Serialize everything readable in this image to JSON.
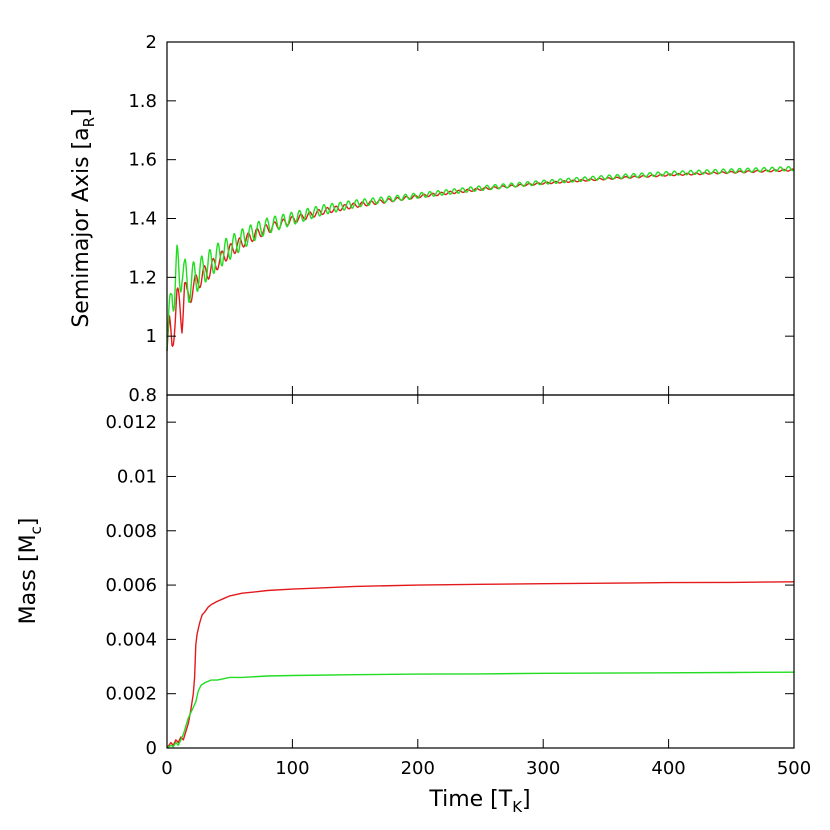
{
  "colors": {
    "series1": "#e31a1c",
    "series2": "#22dd22",
    "axis": "#000000",
    "background": "#ffffff"
  },
  "chart_data": [
    {
      "type": "line",
      "title": "",
      "xlabel": "",
      "ylabel": {
        "main": "Semimajor Axis [a",
        "sub": "R",
        "close": "]"
      },
      "xlim": [
        0,
        500
      ],
      "ylim": [
        0.8,
        2.0
      ],
      "yticks": [
        "0.8",
        "1",
        "1.2",
        "1.4",
        "1.6",
        "1.8",
        "2"
      ],
      "grid": false,
      "series": [
        {
          "color": "#e31a1c",
          "envelope": {
            "x": [
              0,
              2,
              4,
              6,
              8,
              10,
              12,
              14,
              16,
              20,
              25,
              30,
              35,
              40,
              50,
              60,
              70,
              80,
              100,
              125,
              150,
              175,
              200,
              250,
              300,
              350,
              400,
              450,
              500
            ],
            "y": [
              0.95,
              1.02,
              0.99,
              1.05,
              1.12,
              1.1,
              1.05,
              1.18,
              1.12,
              1.16,
              1.19,
              1.21,
              1.23,
              1.25,
              1.29,
              1.32,
              1.345,
              1.365,
              1.395,
              1.425,
              1.445,
              1.46,
              1.475,
              1.5,
              1.52,
              1.535,
              1.548,
              1.557,
              1.565
            ],
            "osc_amp": [
              0.04,
              0.05,
              0.05,
              0.05,
              0.05,
              0.05,
              0.04,
              0.04,
              0.04,
              0.035,
              0.03,
              0.03,
              0.028,
              0.025,
              0.022,
              0.02,
              0.018,
              0.016,
              0.012,
              0.01,
              0.008,
              0.006,
              0.005,
              0.004,
              0.003,
              0.003,
              0.003,
              0.003,
              0.003
            ],
            "osc_period": 7
          }
        },
        {
          "color": "#22dd22",
          "envelope": {
            "x": [
              0,
              2,
              4,
              6,
              8,
              10,
              12,
              14,
              16,
              20,
              25,
              30,
              35,
              40,
              50,
              60,
              70,
              80,
              100,
              125,
              150,
              175,
              200,
              250,
              300,
              350,
              400,
              450,
              500
            ],
            "y": [
              0.95,
              1.05,
              1.2,
              1.15,
              1.22,
              1.2,
              1.25,
              1.2,
              1.17,
              1.19,
              1.21,
              1.23,
              1.25,
              1.27,
              1.3,
              1.33,
              1.355,
              1.375,
              1.4,
              1.43,
              1.45,
              1.465,
              1.478,
              1.503,
              1.523,
              1.54,
              1.553,
              1.562,
              1.57
            ],
            "osc_amp": [
              0.04,
              0.08,
              0.09,
              0.09,
              0.09,
              0.08,
              0.08,
              0.07,
              0.07,
              0.06,
              0.055,
              0.05,
              0.048,
              0.045,
              0.04,
              0.035,
              0.03,
              0.027,
              0.022,
              0.017,
              0.013,
              0.01,
              0.009,
              0.008,
              0.007,
              0.007,
              0.007,
              0.007,
              0.007
            ],
            "osc_period": 6.5
          }
        }
      ]
    },
    {
      "type": "line",
      "title": "",
      "xlabel": {
        "main": "Time [T",
        "sub": "K",
        "close": "]"
      },
      "ylabel": {
        "main": "Mass [M",
        "sub": "c",
        "close": "]"
      },
      "xlim": [
        0,
        500
      ],
      "ylim": [
        0,
        0.013
      ],
      "xticks": [
        "0",
        "100",
        "200",
        "300",
        "400",
        "500"
      ],
      "yticks": [
        "0",
        "0.002",
        "0.004",
        "0.006",
        "0.008",
        "0.01",
        "0.012"
      ],
      "grid": false,
      "series": [
        {
          "color": "#e31a1c",
          "x": [
            0,
            3,
            5,
            7,
            9,
            11,
            13,
            15,
            17,
            19,
            21,
            22,
            23,
            24,
            26,
            28,
            30,
            33,
            36,
            40,
            45,
            50,
            60,
            70,
            80,
            100,
            125,
            150,
            200,
            250,
            300,
            350,
            400,
            450,
            500
          ],
          "y": [
            0.0,
            0.0002,
            0.0001,
            0.0003,
            0.0002,
            0.0004,
            0.0003,
            0.0006,
            0.0009,
            0.0014,
            0.002,
            0.0026,
            0.0038,
            0.0042,
            0.0046,
            0.0049,
            0.005,
            0.0052,
            0.0053,
            0.0054,
            0.0055,
            0.0056,
            0.0057,
            0.00575,
            0.0058,
            0.00585,
            0.0059,
            0.00595,
            0.006,
            0.00603,
            0.00605,
            0.00607,
            0.00609,
            0.0061,
            0.00612
          ]
        },
        {
          "color": "#22dd22",
          "x": [
            0,
            3,
            5,
            7,
            9,
            11,
            13,
            15,
            17,
            19,
            21,
            23,
            25,
            27,
            30,
            35,
            40,
            50,
            60,
            80,
            100,
            150,
            200,
            250,
            300,
            350,
            400,
            450,
            500
          ],
          "y": [
            0.0,
            0.0001,
            5e-05,
            0.0002,
            0.0001,
            0.0003,
            0.0005,
            0.0008,
            0.0011,
            0.0013,
            0.0015,
            0.0017,
            0.0021,
            0.0023,
            0.0024,
            0.0025,
            0.0025,
            0.0026,
            0.0026,
            0.00265,
            0.00267,
            0.0027,
            0.00272,
            0.00273,
            0.00275,
            0.00276,
            0.00277,
            0.00278,
            0.00279
          ]
        }
      ]
    }
  ]
}
